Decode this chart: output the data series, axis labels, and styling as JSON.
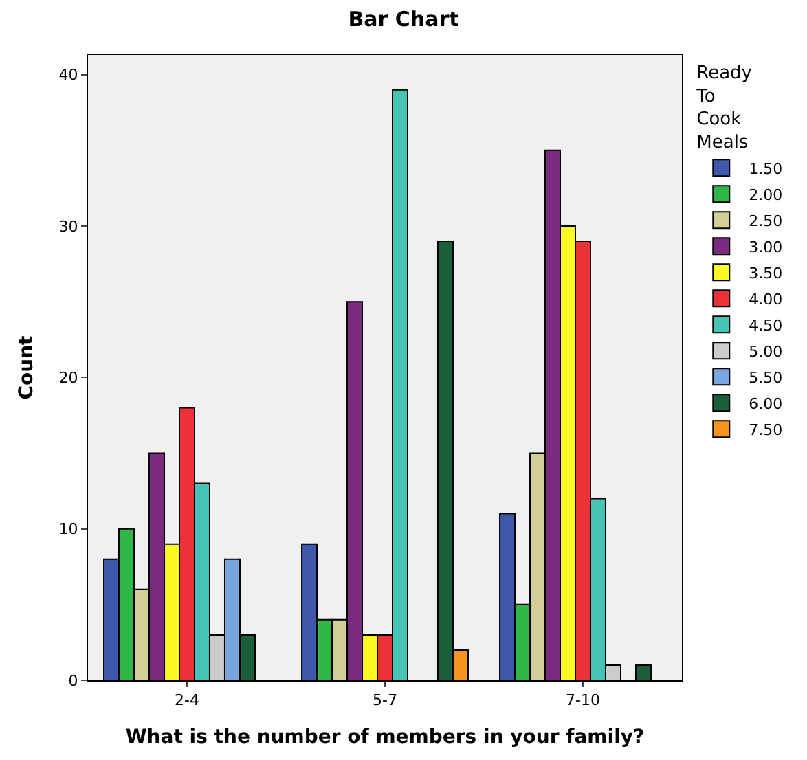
{
  "chart_data": {
    "type": "bar",
    "title": "Bar Chart",
    "xlabel": "What is the number of members in your family?",
    "ylabel": "Count",
    "legend_title": "Ready To Cook Meals",
    "legend": "right",
    "grid": false,
    "categories": [
      "2-4",
      "5-7",
      "7-10"
    ],
    "ylim": [
      0,
      41.3
    ],
    "yticks": [
      0,
      10,
      20,
      30,
      40
    ],
    "series": [
      {
        "name": "1.50",
        "color": "#3e58ac",
        "values": [
          8,
          9,
          11
        ]
      },
      {
        "name": "2.00",
        "color": "#2eb848",
        "values": [
          10,
          4,
          5
        ]
      },
      {
        "name": "2.50",
        "color": "#d3ce97",
        "values": [
          6,
          4,
          15
        ]
      },
      {
        "name": "3.00",
        "color": "#7c2a7e",
        "values": [
          15,
          25,
          35
        ]
      },
      {
        "name": "3.50",
        "color": "#fbf824",
        "values": [
          9,
          3,
          30
        ]
      },
      {
        "name": "4.00",
        "color": "#ed3237",
        "values": [
          18,
          3,
          29
        ]
      },
      {
        "name": "4.50",
        "color": "#48c4b7",
        "values": [
          13,
          39,
          12
        ]
      },
      {
        "name": "5.00",
        "color": "#cccccc",
        "values": [
          3,
          null,
          1
        ]
      },
      {
        "name": "5.50",
        "color": "#7ba7e1",
        "values": [
          8,
          null,
          null
        ]
      },
      {
        "name": "6.00",
        "color": "#1b5e3b",
        "values": [
          3,
          29,
          1
        ]
      },
      {
        "name": "7.50",
        "color": "#f7941d",
        "values": [
          null,
          2,
          null
        ]
      }
    ]
  }
}
